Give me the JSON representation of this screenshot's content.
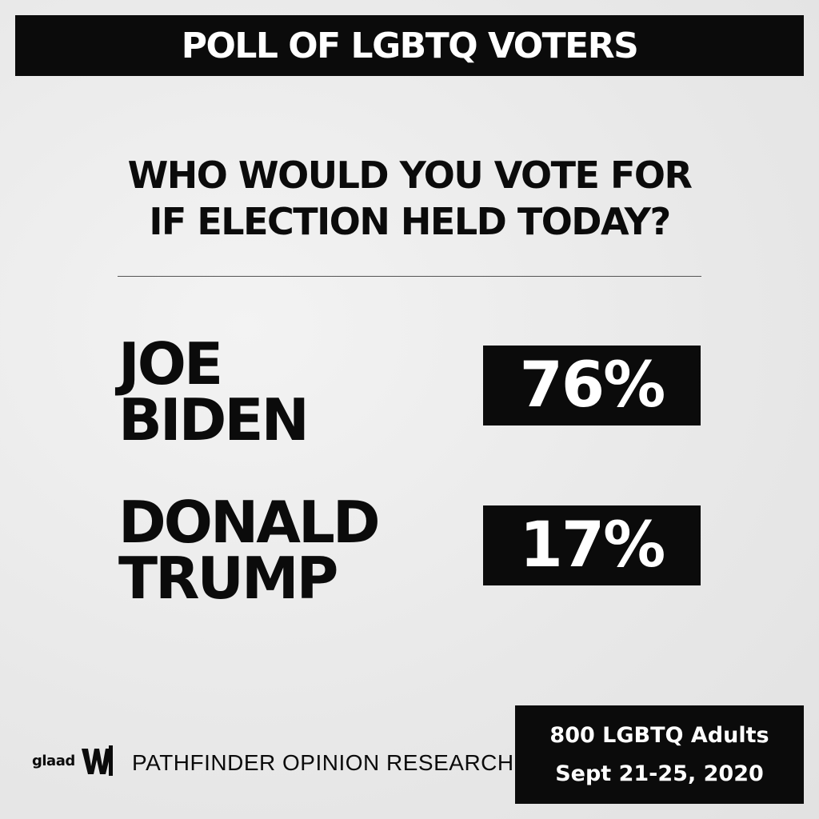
{
  "banner": {
    "title": "POLL OF LGBTQ VOTERS"
  },
  "question": {
    "line1": "WHO WOULD YOU VOTE FOR",
    "line2": "IF ELECTION HELD TODAY?"
  },
  "candidates": [
    {
      "name_line1": "JOE",
      "name_line2": "BIDEN",
      "percent": "76%"
    },
    {
      "name_line1": "DONALD",
      "name_line2": "TRUMP",
      "percent": "17%"
    }
  ],
  "footer": {
    "logo_text": "glaad",
    "logo_icon": "glaad-logo-icon",
    "research_firm": "PATHFINDER OPINION RESEARCH",
    "sample": "800 LGBTQ Adults",
    "dates": "Sept 21-25, 2020"
  },
  "colors": {
    "background": "#ececec",
    "ink": "#0b0b0b",
    "inverse_text": "#ffffff"
  }
}
